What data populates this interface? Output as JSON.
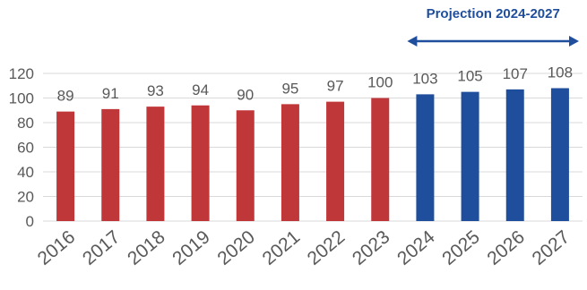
{
  "chart_data": {
    "type": "bar",
    "categories": [
      "2016",
      "2017",
      "2018",
      "2019",
      "2020",
      "2021",
      "2022",
      "2023",
      "2024",
      "2025",
      "2026",
      "2027"
    ],
    "values": [
      89,
      91,
      93,
      94,
      90,
      95,
      97,
      100,
      103,
      105,
      107,
      108
    ],
    "projected": [
      false,
      false,
      false,
      false,
      false,
      false,
      false,
      false,
      true,
      true,
      true,
      true
    ],
    "ylim": [
      0,
      120
    ],
    "yticks": [
      0,
      20,
      40,
      60,
      80,
      100,
      120
    ],
    "grid": true,
    "title": "",
    "xlabel": "",
    "ylabel": "",
    "colors": {
      "historical": "#c0373a",
      "projection": "#1f4e9c",
      "projection_label": "#1f4e9c",
      "grid": "#d9d9d9",
      "text": "#595959"
    },
    "annotation": {
      "label": "Projection 2024-2027",
      "first_category": "2024",
      "last_category": "2027"
    }
  }
}
